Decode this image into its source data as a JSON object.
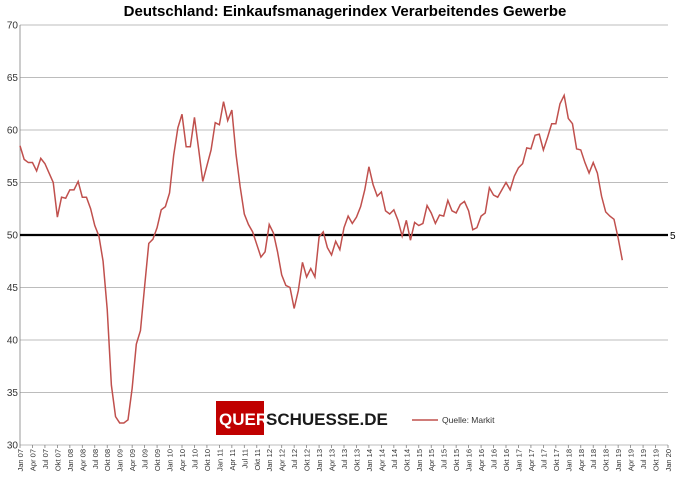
{
  "chart_data": {
    "type": "line",
    "title": "Deutschland: Einkaufsmanagerindex Verarbeitendes Gewerbe",
    "ylim": [
      30,
      70
    ],
    "yticks": [
      30,
      35,
      40,
      45,
      50,
      55,
      60,
      65,
      70
    ],
    "grid": true,
    "reference_line": {
      "value": 50,
      "label": "5"
    },
    "xtick_labels": [
      "Jan 07",
      "Apr 07",
      "Jul 07",
      "Okt 07",
      "Jan 08",
      "Apr 08",
      "Jul 08",
      "Okt 08",
      "Jan 09",
      "Apr 09",
      "Jul 09",
      "Okt 09",
      "Jan 10",
      "Apr 10",
      "Jul 10",
      "Okt 10",
      "Jan 11",
      "Apr 11",
      "Jul 11",
      "Okt 11",
      "Jan 12",
      "Apr 12",
      "Jul 12",
      "Okt 12",
      "Jan 13",
      "Apr 13",
      "Jul 13",
      "Okt 13",
      "Jan 14",
      "Apr 14",
      "Jul 14",
      "Okt 14",
      "Jan 15",
      "Apr 15",
      "Jul 15",
      "Okt 15",
      "Jan 16",
      "Apr 16",
      "Jul 16",
      "Okt 16",
      "Jan 17",
      "Apr 17",
      "Jul 17",
      "Okt 17",
      "Jan 18",
      "Apr 18",
      "Jul 18",
      "Okt 18",
      "Jan 19",
      "Apr 19",
      "Jul 19",
      "Okt 19",
      "Jan 20"
    ],
    "series": [
      {
        "name": "Quelle: Markit",
        "color": "#c0504d",
        "start": "Jan 07",
        "frequency": "monthly",
        "values": [
          58.5,
          57.2,
          56.9,
          56.9,
          56.1,
          57.3,
          56.8,
          55.9,
          55.0,
          51.7,
          53.6,
          53.5,
          54.3,
          54.3,
          55.1,
          53.6,
          53.6,
          52.5,
          50.9,
          49.9,
          47.5,
          42.9,
          35.7,
          32.7,
          32.1,
          32.1,
          32.4,
          35.4,
          39.6,
          40.9,
          45.1,
          49.2,
          49.6,
          50.7,
          52.4,
          52.7,
          54.0,
          57.6,
          60.2,
          61.5,
          58.4,
          58.4,
          61.2,
          58.2,
          55.1,
          56.6,
          58.1,
          60.7,
          60.5,
          62.7,
          60.9,
          61.9,
          57.7,
          54.6,
          52.0,
          51.0,
          50.3,
          49.1,
          47.9,
          48.4,
          51.0,
          50.2,
          48.4,
          46.2,
          45.2,
          45.0,
          43.0,
          44.7,
          47.4,
          46.0,
          46.8,
          46.0,
          49.8,
          50.3,
          48.8,
          48.1,
          49.4,
          48.6,
          50.7,
          51.8,
          51.1,
          51.7,
          52.7,
          54.3,
          56.5,
          54.8,
          53.7,
          54.1,
          52.3,
          52.0,
          52.4,
          51.4,
          49.9,
          51.4,
          49.5,
          51.2,
          50.9,
          51.1,
          52.8,
          52.1,
          51.1,
          51.9,
          51.8,
          53.3,
          52.3,
          52.1,
          52.9,
          53.2,
          52.3,
          50.5,
          50.7,
          51.8,
          52.1,
          54.5,
          53.8,
          53.6,
          54.3,
          55.0,
          54.3,
          55.6,
          56.4,
          56.8,
          58.3,
          58.2,
          59.5,
          59.6,
          58.1,
          59.3,
          60.6,
          60.6,
          62.5,
          63.3,
          61.1,
          60.6,
          58.2,
          58.1,
          56.9,
          55.9,
          56.9,
          55.9,
          53.7,
          52.2,
          51.8,
          51.5,
          49.7,
          47.6
        ]
      }
    ]
  },
  "branding": {
    "logo_left": "QUER",
    "logo_right": "SCHUESSE.DE",
    "logo_color": "#c00000"
  }
}
